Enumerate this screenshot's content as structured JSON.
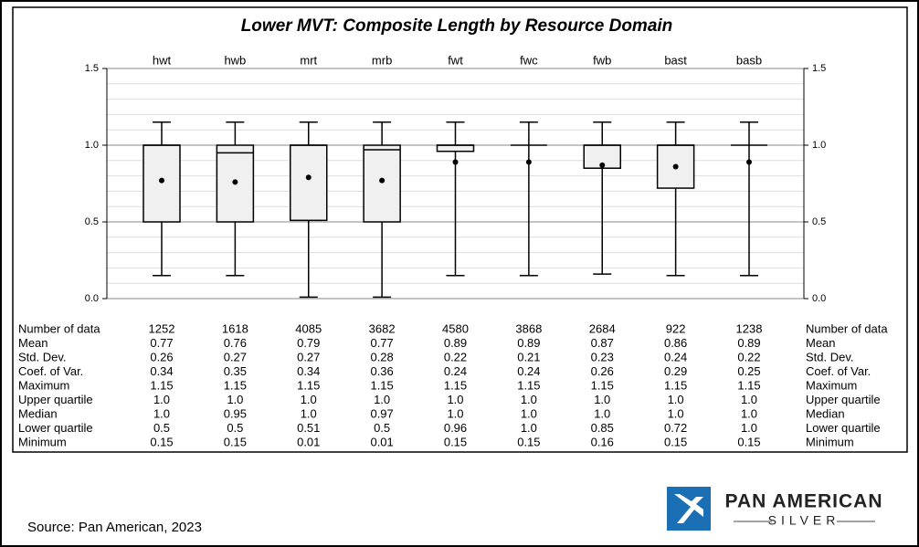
{
  "chart_data": {
    "type": "box",
    "title": "Lower MVT: Composite Length by Resource Domain",
    "categories": [
      "hwt",
      "hwb",
      "mrt",
      "mrb",
      "fwt",
      "fwc",
      "fwb",
      "bast",
      "basb"
    ],
    "ylim": [
      0,
      1.5
    ],
    "yticks": [
      {
        "value": 0,
        "label": "0.0"
      },
      {
        "value": 0.5,
        "label": "0.5"
      },
      {
        "value": 1,
        "label": "1.0"
      },
      {
        "value": 1.5,
        "label": "1.5"
      }
    ],
    "minor_yticks": [
      0.1,
      0.2,
      0.3,
      0.4,
      0.6,
      0.7,
      0.8,
      0.9,
      1.1,
      1.2,
      1.3,
      1.4
    ],
    "grid": true,
    "box_color": "#f0f0f0",
    "rows": [
      {
        "name": "Number of data",
        "values": [
          1252,
          1618,
          4085,
          3682,
          4580,
          3868,
          2684,
          922,
          1238
        ]
      },
      {
        "name": "Mean",
        "values": [
          0.77,
          0.76,
          0.79,
          0.77,
          0.89,
          0.89,
          0.87,
          0.86,
          0.89
        ]
      },
      {
        "name": "Std. Dev.",
        "values": [
          0.26,
          0.27,
          0.27,
          0.28,
          0.22,
          0.21,
          0.23,
          0.24,
          0.22
        ]
      },
      {
        "name": "Coef. of Var.",
        "values": [
          0.34,
          0.35,
          0.34,
          0.36,
          0.24,
          0.24,
          0.26,
          0.29,
          0.25
        ]
      },
      {
        "name": "Maximum",
        "values": [
          1.15,
          1.15,
          1.15,
          1.15,
          1.15,
          1.15,
          1.15,
          1.15,
          1.15
        ]
      },
      {
        "name": "Upper quartile",
        "values": [
          1,
          1,
          1,
          1,
          1,
          1,
          1,
          1,
          1
        ],
        "value_labels": [
          "1.0",
          "1.0",
          "1.0",
          "1.0",
          "1.0",
          "1.0",
          "1.0",
          "1.0",
          "1.0"
        ]
      },
      {
        "name": "Median",
        "values": [
          1,
          0.95,
          1,
          0.97,
          1,
          1,
          1,
          1,
          1
        ],
        "value_labels": [
          "1.0",
          "0.95",
          "1.0",
          "0.97",
          "1.0",
          "1.0",
          "1.0",
          "1.0",
          "1.0"
        ]
      },
      {
        "name": "Lower quartile",
        "values": [
          0.5,
          0.5,
          0.51,
          0.5,
          0.96,
          1,
          0.85,
          0.72,
          1
        ],
        "value_labels": [
          "0.5",
          "0.5",
          "0.51",
          "0.5",
          "0.96",
          "1.0",
          "0.85",
          "0.72",
          "1.0"
        ]
      },
      {
        "name": "Minimum",
        "values": [
          0.15,
          0.15,
          0.01,
          0.01,
          0.15,
          0.15,
          0.16,
          0.15,
          0.15
        ]
      }
    ]
  },
  "source": "Source: Pan American, 2023",
  "logo": {
    "name": "PAN AMERICAN",
    "sub": "SILVER"
  }
}
